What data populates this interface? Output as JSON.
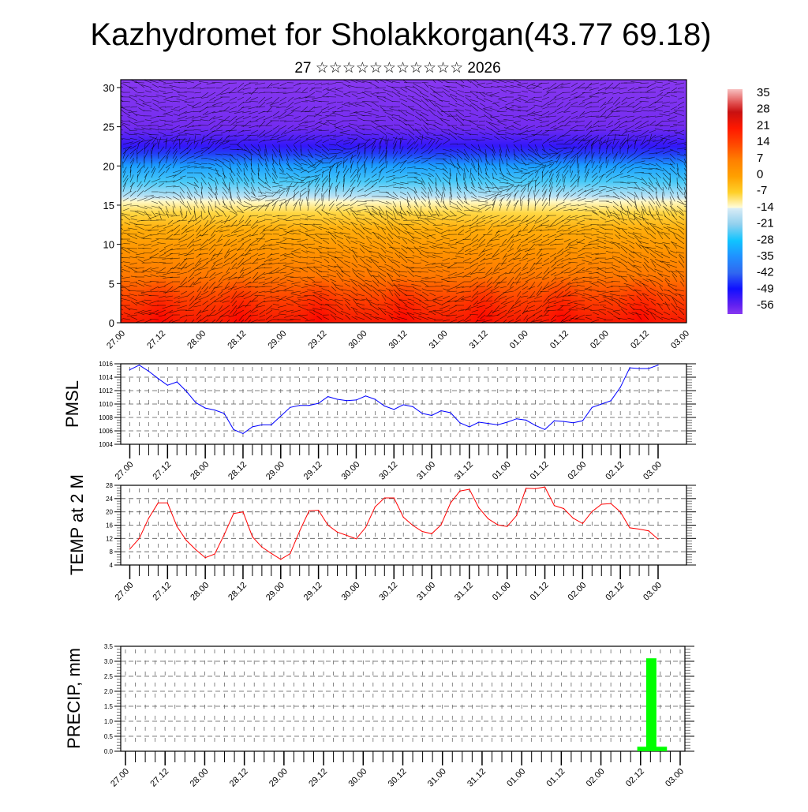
{
  "header": {
    "title": "Kazhydromet for Sholakkorgan(43.77 69.18)",
    "subtitle": "27 ☆☆☆☆☆☆☆☆☆☆☆ 2026"
  },
  "chart_data": [
    {
      "type": "heatmap",
      "name": "vertical-temperature-wind",
      "xlabel": "",
      "ylabel": "",
      "x_tick_labels": [
        "27.00",
        "27.12",
        "28.00",
        "28.12",
        "29.00",
        "29.12",
        "30.00",
        "30.12",
        "31.00",
        "31.12",
        "01.00",
        "01.12",
        "02.00",
        "02.12",
        "03.00"
      ],
      "y_ticks": [
        0,
        5,
        10,
        15,
        20,
        25,
        30
      ],
      "ylim": [
        0,
        31
      ],
      "approx_profile": {
        "height": [
          0,
          3,
          6,
          9,
          12,
          14,
          15.5,
          16,
          18,
          20,
          21.5,
          22.5,
          25,
          31
        ],
        "temp": [
          22,
          15,
          8,
          3,
          -2,
          -8,
          -13,
          -16,
          -25,
          -33,
          -45,
          -52,
          -58,
          -60
        ]
      },
      "colorbar": {
        "labels": [
          "35",
          "28",
          "21",
          "14",
          "7",
          "0",
          "-7",
          "-14",
          "-21",
          "-28",
          "-35",
          "-42",
          "-49",
          "-56"
        ],
        "range": [
          -60,
          38
        ],
        "stops": [
          {
            "v": 38,
            "c": "#f8c0c0"
          },
          {
            "v": 32,
            "c": "#e05050"
          },
          {
            "v": 28,
            "c": "#c81010"
          },
          {
            "v": 21,
            "c": "#ff1800"
          },
          {
            "v": 14,
            "c": "#ff4800"
          },
          {
            "v": 7,
            "c": "#ff8000"
          },
          {
            "v": 0,
            "c": "#ffa000"
          },
          {
            "v": -7,
            "c": "#ffd028"
          },
          {
            "v": -13.5,
            "c": "#fffcd8"
          },
          {
            "v": -14,
            "c": "#d8ecf6"
          },
          {
            "v": -21,
            "c": "#90d0ee"
          },
          {
            "v": -28,
            "c": "#10c4ff"
          },
          {
            "v": -35,
            "c": "#2090ff"
          },
          {
            "v": -42,
            "c": "#3068f0"
          },
          {
            "v": -49,
            "c": "#1010ff"
          },
          {
            "v": -56,
            "c": "#6020f0"
          },
          {
            "v": -60,
            "c": "#8838f0"
          }
        ]
      }
    },
    {
      "type": "line",
      "name": "pmsl",
      "ylabel": "PMSL",
      "color": "#0000ff",
      "ylim": [
        1004,
        1016
      ],
      "y_ticks": [
        1004,
        1006,
        1008,
        1010,
        1012,
        1014,
        1016
      ],
      "x_step_hours": 3,
      "x_tick_labels": [
        "27.00",
        "27.12",
        "28.00",
        "28.12",
        "29.00",
        "29.12",
        "30.00",
        "30.12",
        "31.00",
        "31.12",
        "01.00",
        "01.12",
        "02.00",
        "02.12",
        "03.00"
      ],
      "values": [
        1015.1,
        1015.8,
        1014.9,
        1013.8,
        1012.8,
        1013.3,
        1011.9,
        1010.2,
        1009.4,
        1009.1,
        1008.6,
        1006.2,
        1005.6,
        1006.6,
        1006.9,
        1006.9,
        1008.2,
        1009.5,
        1009.8,
        1009.8,
        1010.1,
        1011.1,
        1010.7,
        1010.5,
        1010.6,
        1011.2,
        1010.7,
        1009.7,
        1009.2,
        1009.9,
        1009.6,
        1008.6,
        1008.3,
        1009.0,
        1008.7,
        1007.2,
        1006.6,
        1007.3,
        1007.1,
        1006.9,
        1007.3,
        1007.8,
        1007.6,
        1006.8,
        1006.2,
        1007.5,
        1007.4,
        1007.2,
        1007.5,
        1009.5,
        1010.0,
        1010.5,
        1012.5,
        1015.4,
        1015.3,
        1015.3,
        1015.8
      ]
    },
    {
      "type": "line",
      "name": "temp2m",
      "ylabel": "TEMP at 2 M",
      "color": "#ff0000",
      "ylim": [
        4,
        28
      ],
      "y_ticks": [
        4,
        8,
        12,
        16,
        20,
        24,
        28
      ],
      "x_step_hours": 3,
      "x_tick_labels": [
        "27.00",
        "27.12",
        "28.00",
        "28.12",
        "29.00",
        "29.12",
        "30.00",
        "30.12",
        "31.00",
        "31.12",
        "01.00",
        "01.12",
        "02.00",
        "02.12",
        "03.00"
      ],
      "values": [
        8.8,
        12.0,
        18.1,
        22.7,
        22.7,
        15.6,
        11.4,
        8.6,
        6.2,
        7.3,
        13.1,
        19.5,
        20.0,
        12.5,
        9.4,
        7.5,
        5.7,
        7.4,
        14.2,
        20.3,
        20.5,
        16.0,
        13.9,
        12.9,
        11.9,
        15.3,
        21.5,
        24.2,
        24.2,
        18.4,
        15.9,
        14.1,
        13.4,
        16.1,
        22.7,
        26.3,
        26.8,
        21.2,
        17.9,
        16.1,
        15.6,
        18.9,
        27.1,
        27.0,
        27.5,
        21.9,
        21.0,
        18.1,
        16.5,
        20.1,
        22.3,
        22.5,
        20.0,
        15.2,
        14.8,
        14.3,
        11.8
      ]
    },
    {
      "type": "bar",
      "name": "precip",
      "ylabel": "PRECIP, mm",
      "color": "#00ff00",
      "ylim": [
        0,
        3.5
      ],
      "y_ticks": [
        "0.0",
        "0.5",
        "1.0",
        "1.5",
        "2.0",
        "2.5",
        "3.0",
        "3.5"
      ],
      "x_tick_labels": [
        "27.00",
        "27.12",
        "28.00",
        "28.12",
        "29.00",
        "29.12",
        "30.00",
        "30.12",
        "31.00",
        "31.12",
        "01.00",
        "01.12",
        "02.00",
        "02.12",
        "03.00"
      ],
      "bars": [
        {
          "hour_start": 155,
          "hour_end": 164,
          "value": 0.15
        },
        {
          "hour_start": 157.7,
          "hour_end": 160.8,
          "value": 3.1
        }
      ]
    }
  ]
}
